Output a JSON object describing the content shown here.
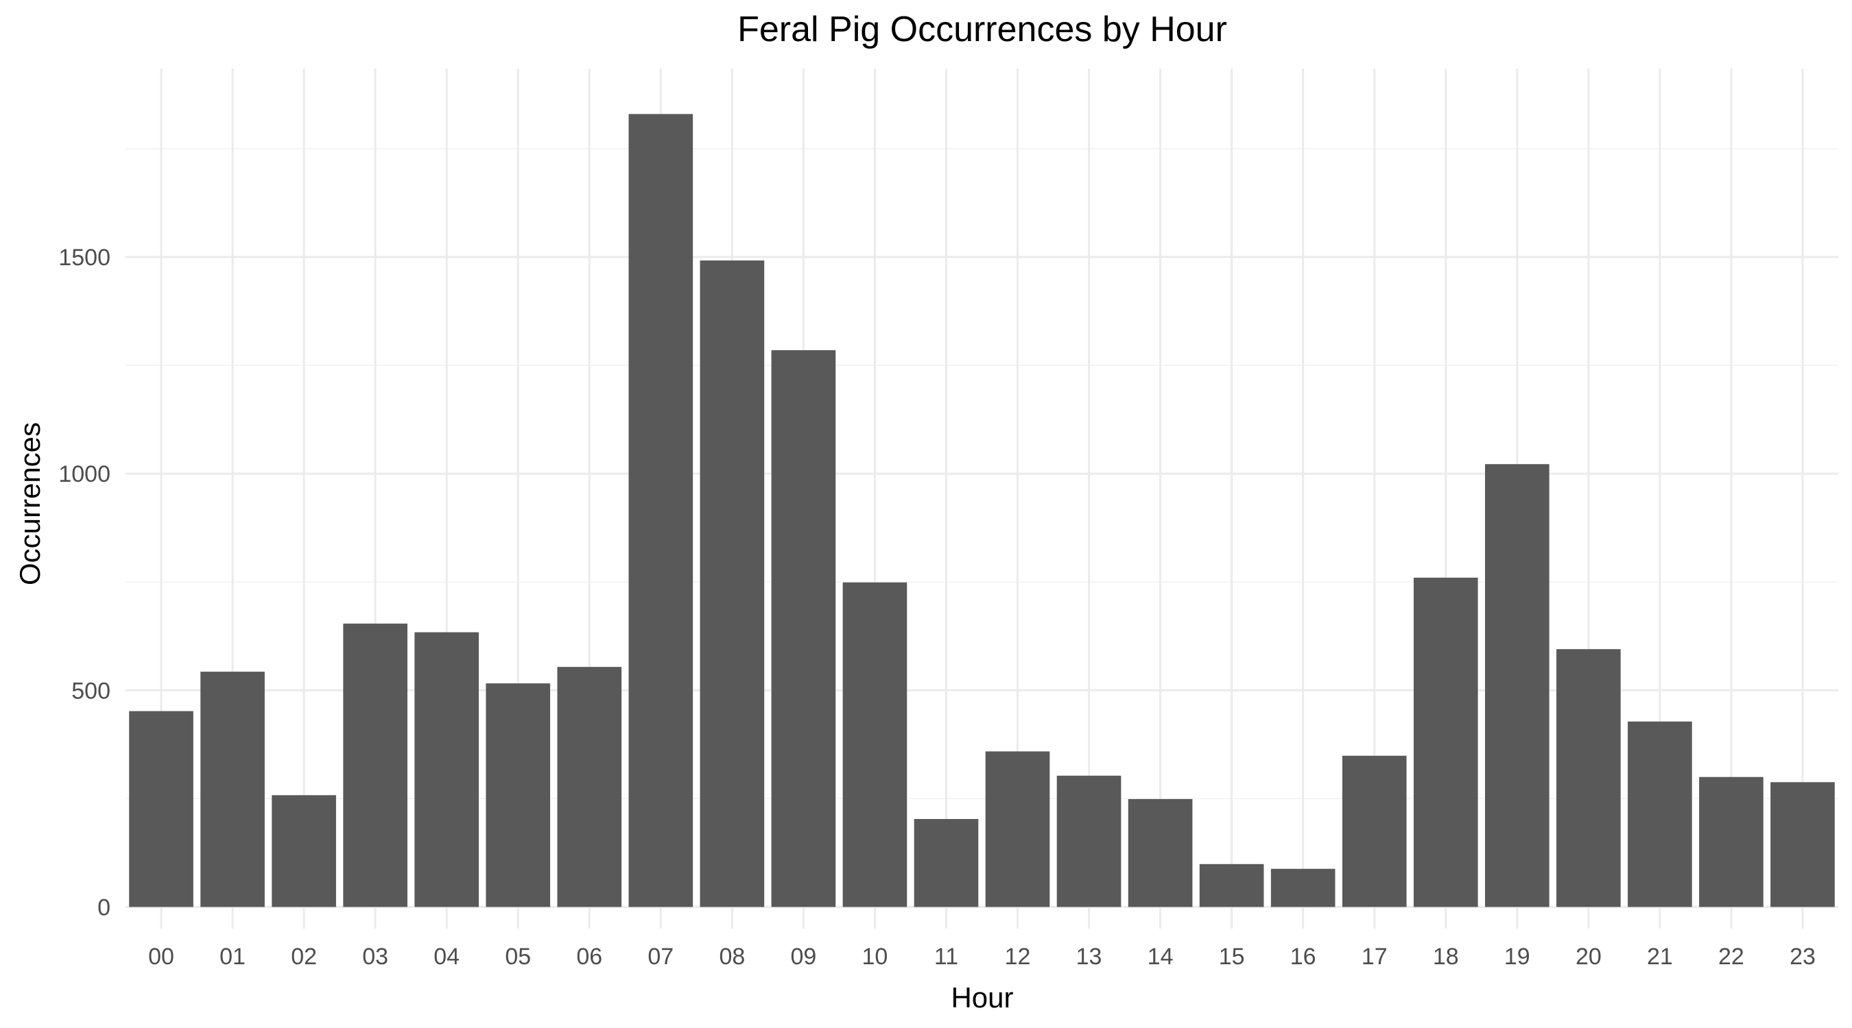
{
  "chart_data": {
    "type": "bar",
    "title": "Feral Pig Occurrences by Hour",
    "xlabel": "Hour",
    "ylabel": "Occurrences",
    "categories": [
      "00",
      "01",
      "02",
      "03",
      "04",
      "05",
      "06",
      "07",
      "08",
      "09",
      "10",
      "11",
      "12",
      "13",
      "14",
      "15",
      "16",
      "17",
      "18",
      "19",
      "20",
      "21",
      "22",
      "23"
    ],
    "values": [
      452,
      543,
      258,
      654,
      634,
      516,
      554,
      1830,
      1492,
      1285,
      749,
      203,
      359,
      303,
      249,
      99,
      88,
      349,
      760,
      1022,
      595,
      428,
      300,
      288
    ],
    "yticks": [
      0,
      500,
      1000,
      1500
    ],
    "ylim": [
      -50,
      1935
    ],
    "grid": true,
    "bar_color": "#595959",
    "legend": "none"
  }
}
